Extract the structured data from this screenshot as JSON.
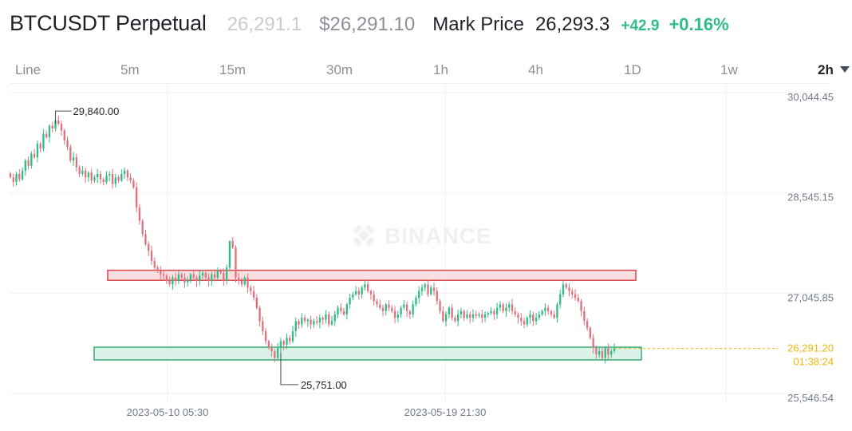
{
  "header": {
    "symbol": "BTCUSDT Perpetual",
    "last_price": "26,291.1",
    "usd_price": "$26,291.10",
    "mark_label": "Mark Price",
    "mark_value": "26,293.3",
    "change": "+42.9",
    "change_pct": "+0.16%"
  },
  "tabs": [
    "Line",
    "5m",
    "15m",
    "30m",
    "1h",
    "4h",
    "1D",
    "1w",
    "2h"
  ],
  "active_tab": "2h",
  "colors": {
    "up": "#2ebd85",
    "down": "#e0727f",
    "accent": "#f0b90b"
  },
  "watermark": "BINANCE",
  "chart_data": {
    "type": "candlestick",
    "y_ticks": [
      "30,044.45",
      "28,545.15",
      "27,045.85",
      "25,546.54"
    ],
    "y_tick_values": [
      30044.45,
      28545.15,
      27045.85,
      25546.54
    ],
    "x_labels": [
      "2023-05-10 05:30",
      "2023-05-19 21:30"
    ],
    "current_price": "26,291.20",
    "countdown": "01:38:24",
    "high_label": "29,840.00",
    "low_label": "25,751.00",
    "high_value": 29840,
    "low_value": 25751,
    "resistance_zone": [
      27310,
      27460
    ],
    "support_zone": [
      26120,
      26310
    ],
    "closes": [
      28850,
      28780,
      28900,
      28820,
      28950,
      29100,
      29020,
      29200,
      29150,
      29350,
      29280,
      29500,
      29450,
      29620,
      29580,
      29700,
      29650,
      29550,
      29400,
      29300,
      29100,
      29150,
      29000,
      28900,
      28950,
      28850,
      28920,
      28800,
      28850,
      28900,
      28820,
      28780,
      28880,
      28900,
      28750,
      28850,
      28800,
      28900,
      28950,
      28850,
      28800,
      28700,
      28400,
      28200,
      28000,
      27850,
      27750,
      27600,
      27500,
      27450,
      27400,
      27380,
      27300,
      27250,
      27350,
      27300,
      27400,
      27350,
      27280,
      27320,
      27400,
      27350,
      27300,
      27380,
      27420,
      27350,
      27300,
      27400,
      27350,
      27450,
      27420,
      27300,
      27500,
      27900,
      27800,
      27350,
      27300,
      27250,
      27350,
      27200,
      27150,
      27050,
      26900,
      26700,
      26550,
      26400,
      26300,
      26250,
      26150,
      26300,
      26400,
      26350,
      26450,
      26400,
      26550,
      26700,
      26650,
      26750,
      26700,
      26720,
      26650,
      26700,
      26680,
      26750,
      26720,
      26800,
      26650,
      26700,
      26800,
      26900,
      26850,
      26800,
      26950,
      27050,
      27100,
      27150,
      27100,
      27200,
      27250,
      27150,
      27100,
      27000,
      26950,
      26900,
      26850,
      26950,
      26900,
      26850,
      26750,
      26800,
      26900,
      26950,
      26850,
      26800,
      26950,
      27050,
      27150,
      27200,
      27250,
      27100,
      27200,
      27150,
      27000,
      26850,
      26700,
      26800,
      26900,
      26750,
      26700,
      26800,
      26850,
      26750,
      26800,
      26750,
      26800,
      26780,
      26800,
      26750,
      26800,
      26820,
      26850,
      26800,
      26900,
      26950,
      26850,
      26900,
      26950,
      26850,
      26800,
      26750,
      26700,
      26650,
      26750,
      26800,
      26700,
      26750,
      26800,
      26850,
      26900,
      26850,
      26800,
      26750,
      26950,
      27100,
      27250,
      27200,
      27150,
      27100,
      27050,
      27000,
      26850,
      26700,
      26600,
      26450,
      26300,
      26200,
      26250,
      26150,
      26300,
      26200,
      26250,
      26291
    ]
  }
}
